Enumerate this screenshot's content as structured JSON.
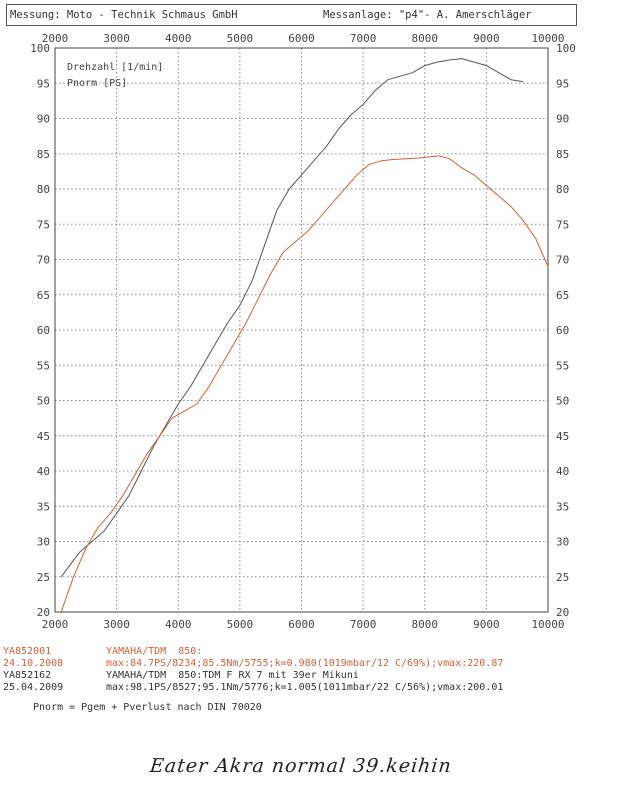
{
  "header": {
    "left": "Messung: Moto - Technik Schmaus GmbH",
    "right": "Messanlage: \"p4\"- A. Amerschläger"
  },
  "chart_data": {
    "type": "line",
    "x_ticks": [
      2000,
      3000,
      4000,
      5000,
      6000,
      7000,
      8000,
      9000,
      10000
    ],
    "y_ticks": [
      20,
      25,
      30,
      35,
      40,
      45,
      50,
      55,
      60,
      65,
      70,
      75,
      80,
      85,
      90,
      95,
      100
    ],
    "xlim": [
      2000,
      10000
    ],
    "ylim": [
      20,
      100
    ],
    "grid": true,
    "axis_labels": [
      "Drehzahl [1/min]",
      "Pnorm [PS]"
    ],
    "series": [
      {
        "name": "YA852162",
        "color": "#555555",
        "x": [
          2100,
          2400,
          2600,
          2800,
          3000,
          3200,
          3400,
          3600,
          3800,
          4000,
          4200,
          4400,
          4600,
          4800,
          5000,
          5200,
          5400,
          5600,
          5800,
          6000,
          6200,
          6400,
          6600,
          6800,
          7000,
          7200,
          7400,
          7600,
          7800,
          8000,
          8200,
          8400,
          8600,
          8800,
          9000,
          9200,
          9400,
          9600
        ],
        "y": [
          25,
          28.5,
          30,
          31.5,
          34,
          36.5,
          40,
          43.5,
          46.5,
          49.5,
          52,
          55,
          58,
          61,
          63.5,
          67,
          72,
          77,
          80,
          82,
          84,
          86,
          88.5,
          90.5,
          92,
          94,
          95.5,
          96,
          96.5,
          97.5,
          98,
          98.3,
          98.5,
          98,
          97.5,
          96.5,
          95.5,
          95.2
        ]
      },
      {
        "name": "YA852001",
        "color": "#d0603a",
        "x": [
          2100,
          2300,
          2500,
          2700,
          2900,
          3100,
          3300,
          3500,
          3700,
          3900,
          4100,
          4300,
          4500,
          4700,
          4900,
          5100,
          5300,
          5500,
          5700,
          5900,
          6100,
          6300,
          6500,
          6700,
          6900,
          7100,
          7300,
          7500,
          7700,
          7900,
          8100,
          8234,
          8400,
          8600,
          8800,
          9000,
          9200,
          9400,
          9600,
          9800,
          10000
        ],
        "y": [
          20,
          25,
          29,
          32,
          34,
          36.5,
          39.5,
          42.5,
          45,
          47.5,
          48.5,
          49.5,
          52,
          55,
          58,
          61,
          64.5,
          68,
          71,
          72.5,
          74,
          76,
          78,
          80,
          82,
          83.5,
          84,
          84.2,
          84.3,
          84.4,
          84.6,
          84.7,
          84.3,
          83,
          82,
          80.5,
          79,
          77.5,
          75.5,
          73,
          69
        ]
      }
    ]
  },
  "legend": [
    {
      "id": "YA852001",
      "date": "24.10.2008",
      "vehicle": "YAMAHA/TDM  850:",
      "values": "max:84.7PS/8234;85.5Nm/5755;k=0.980(1019mbar/12 C/69%);vmax:220.87"
    },
    {
      "id": "YA852162",
      "date": "25.04.2009",
      "vehicle": "YAMAHA/TDM  850:TDM F RX 7 mit 39er Mikuni",
      "values": "max:98.1PS/8527;95.1Nm/5776;k=1.005(1011mbar/22 C/56%);vmax:200.01"
    }
  ],
  "formula": "Pnorm = Pgem + Pverlust nach DIN 70020",
  "handwritten_note": "Eater Akra normal 39.keihin"
}
